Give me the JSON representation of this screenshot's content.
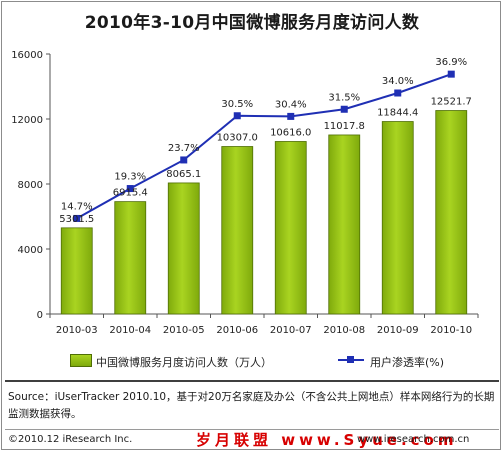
{
  "title": "2010年3-10月中国微博服务月度访问人数",
  "chart_data": {
    "type": "bar+line",
    "categories": [
      "2010-03",
      "2010-04",
      "2010-05",
      "2010-06",
      "2010-07",
      "2010-08",
      "2010-09",
      "2010-10"
    ],
    "series": [
      {
        "name": "中国微博服务月度访问人数（万人）",
        "type": "bar",
        "values": [
          5301.5,
          6915.4,
          8065.1,
          10307.0,
          10616.0,
          11017.8,
          11844.4,
          12521.7
        ],
        "labels": [
          "5301.5",
          "6915.4",
          "8065.1",
          "10307.0",
          "10616.0",
          "11017.8",
          "11844.4",
          "12521.7"
        ],
        "color": "#8dbb14"
      },
      {
        "name": "用户渗透率(%)",
        "type": "line",
        "values": [
          14.7,
          19.3,
          23.7,
          30.5,
          30.4,
          31.5,
          34.0,
          36.9
        ],
        "labels": [
          "14.7%",
          "19.3%",
          "23.7%",
          "30.5%",
          "30.4%",
          "31.5%",
          "34.0%",
          "36.9%"
        ],
        "color": "#1f2fb4"
      }
    ],
    "y_ticks": [
      "0",
      "4000",
      "8000",
      "12000",
      "16000"
    ],
    "ylim": [
      0,
      16000
    ],
    "grid": false,
    "legend_position": "bottom"
  },
  "legend": {
    "bar_label": "中国微博服务月度访问人数（万人）",
    "line_label": "用户渗透率(%)"
  },
  "source": "Source：iUserTracker 2010.10，基于对20万名家庭及办公（不含公共上网地点）样本网络行为的长期监测数据获得。",
  "footer": {
    "left": "©2010.12 iResearch Inc.",
    "watermark": "岁月联盟 www.Syue.com",
    "right": "www.iresearch.com.cn"
  },
  "colors": {
    "bar_top": "#a9d421",
    "bar_bottom": "#7faa0c",
    "line": "#1f2fb4",
    "watermark": "#d70000"
  }
}
